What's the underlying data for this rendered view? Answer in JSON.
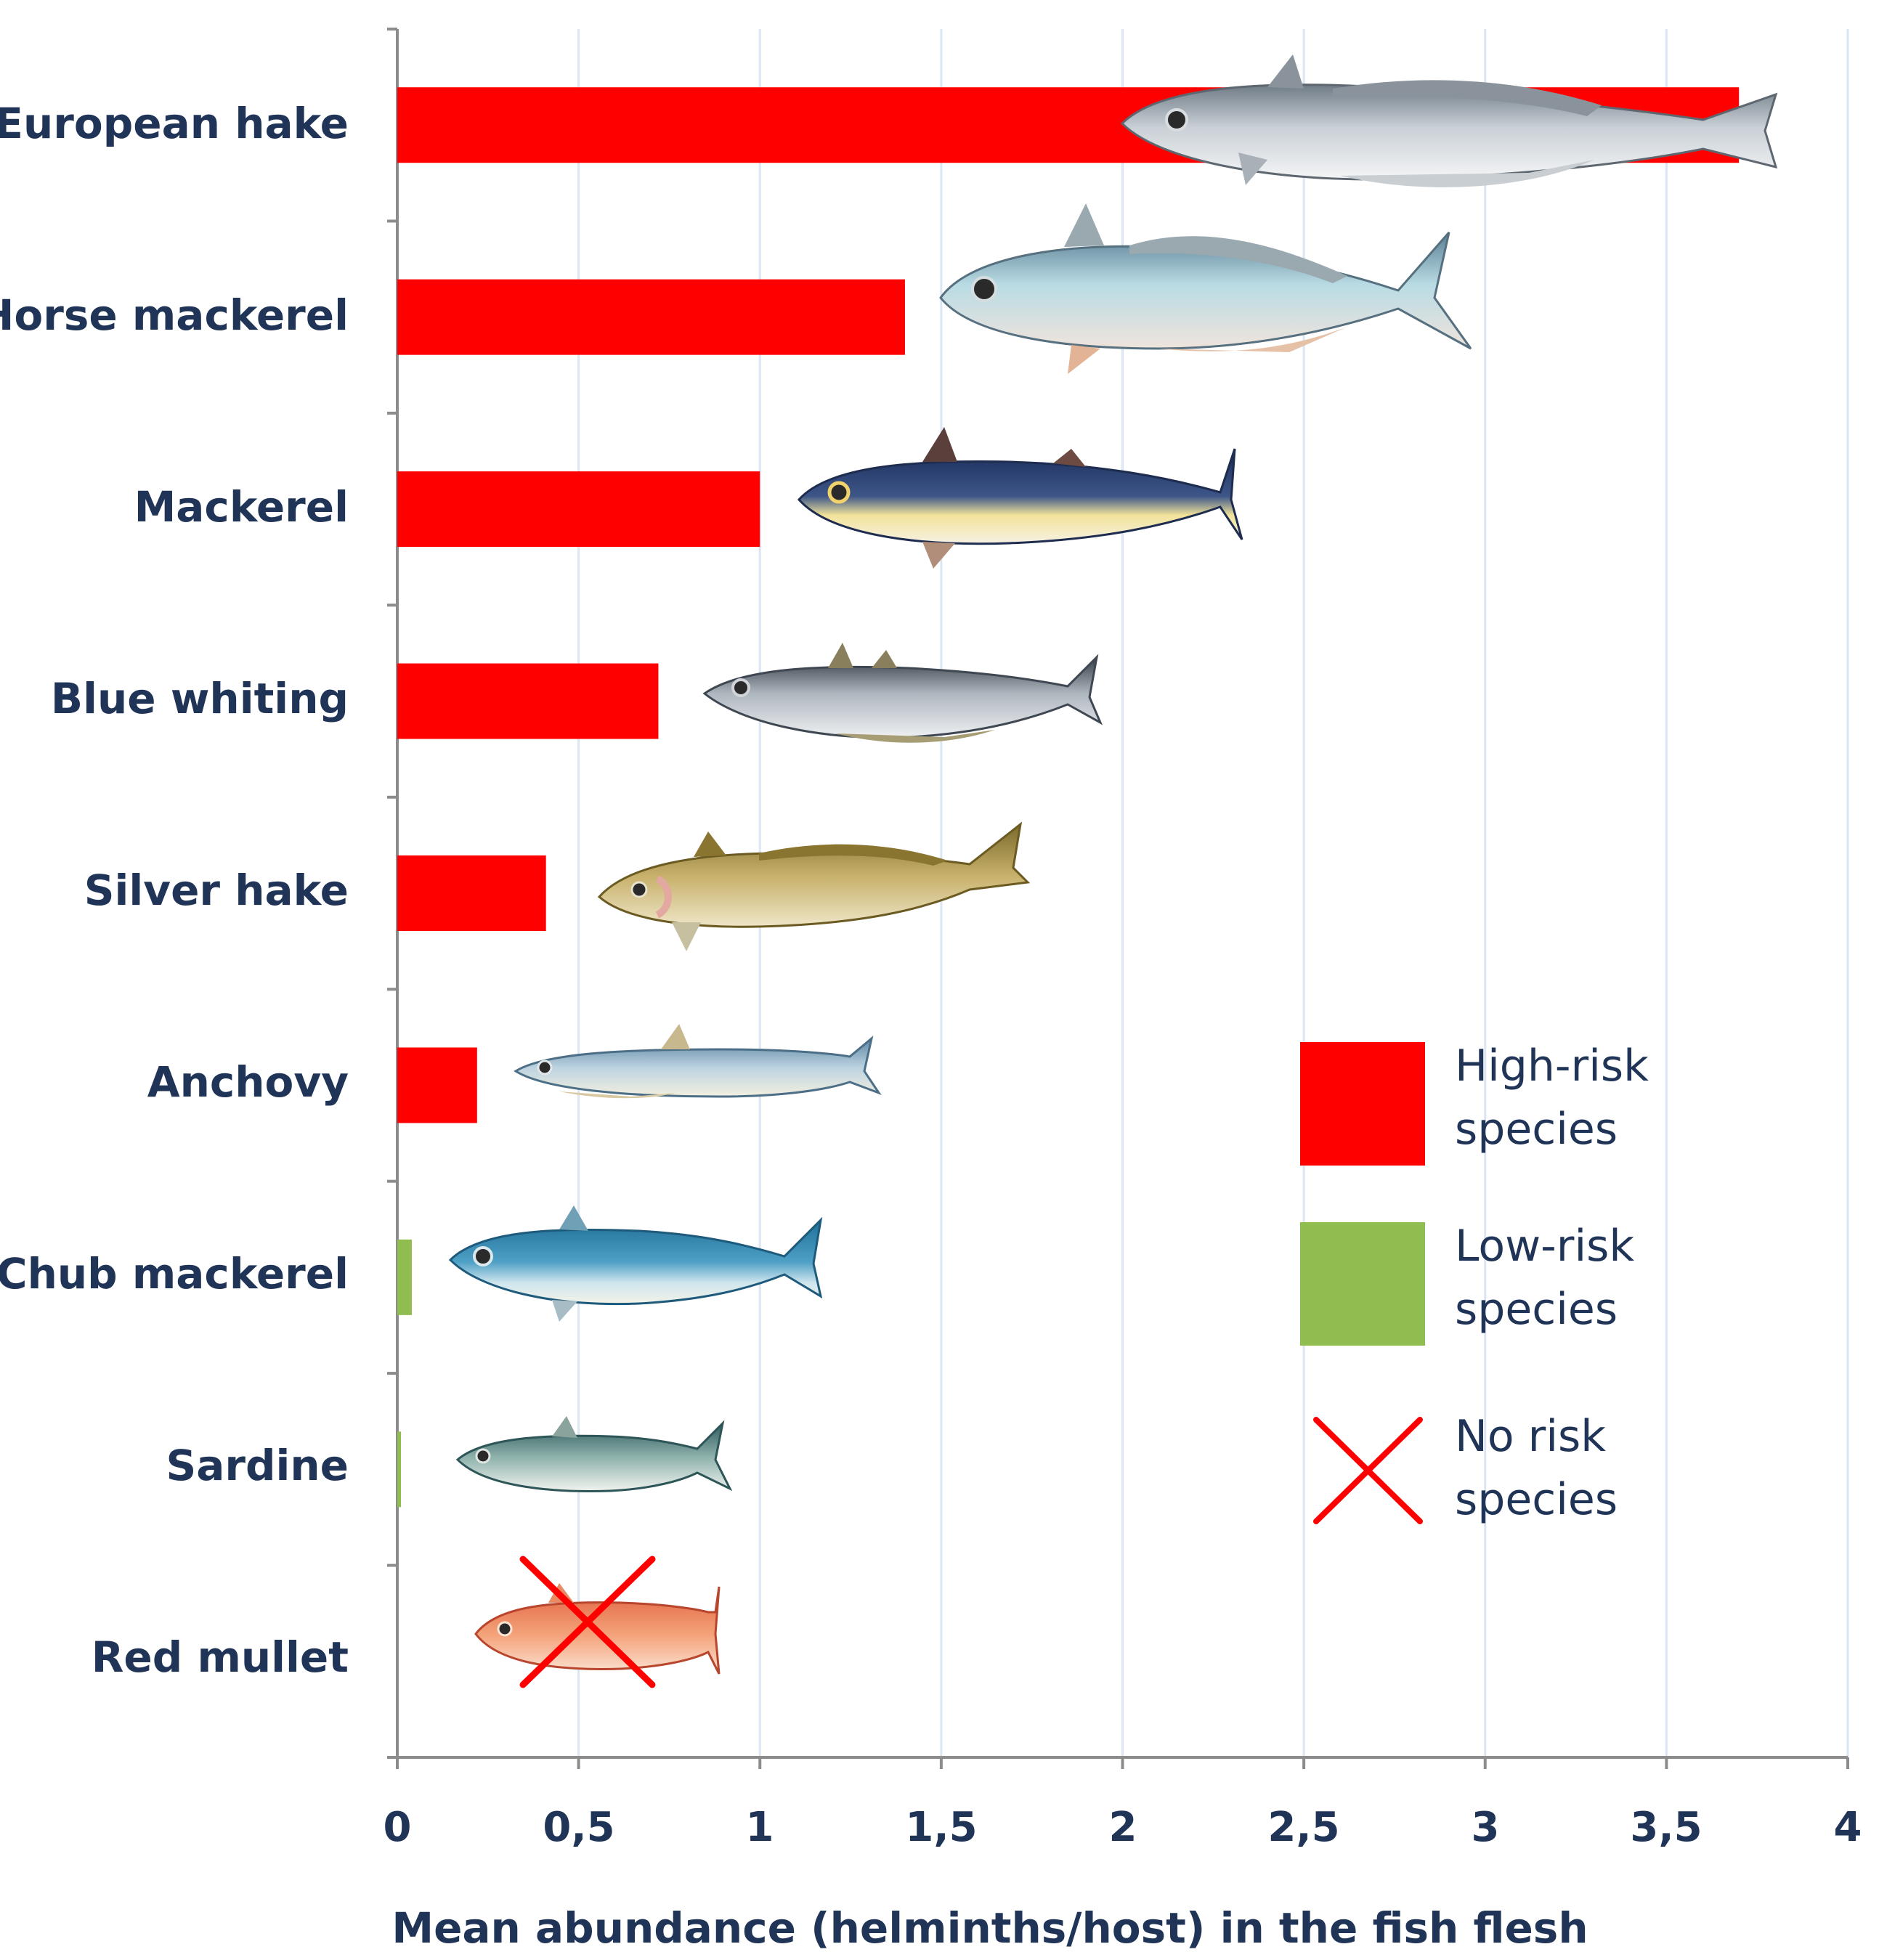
{
  "chart_data": {
    "type": "bar",
    "orientation": "horizontal",
    "categories": [
      "European hake",
      "Horse mackerel",
      "Mackerel",
      "Blue whiting",
      "Silver hake",
      "Anchovy",
      "Chub mackerel",
      "Sardine",
      "Red mullet"
    ],
    "values": [
      3.7,
      1.4,
      1.0,
      0.72,
      0.41,
      0.22,
      0.04,
      0.01,
      0
    ],
    "risk": [
      "high",
      "high",
      "high",
      "high",
      "high",
      "high",
      "low",
      "low",
      "none"
    ],
    "xlabel": "Mean abundance (helminths/host) in the fish flesh",
    "xlim": [
      0,
      4
    ],
    "x_ticks": [
      "0",
      "0,5",
      "1",
      "1,5",
      "2",
      "2,5",
      "3",
      "3,5",
      "4"
    ],
    "grid": "vertical",
    "legend_position": "right",
    "legend": [
      {
        "key": "high",
        "line1": "High-risk",
        "line2": "species",
        "color": "#ff0000",
        "marker": "square"
      },
      {
        "key": "low",
        "line1": "Low-risk",
        "line2": "species",
        "color": "#8fbd4f",
        "marker": "square"
      },
      {
        "key": "none",
        "line1": "No risk",
        "line2": "species",
        "color": "#ff0000",
        "marker": "cross"
      }
    ],
    "colors": {
      "high": "#ff0000",
      "low": "#8fbd4f",
      "axis": "#8c8c8c",
      "grid": "#dbe6f4",
      "text": "#1f3457"
    },
    "fish_icons": [
      "european-hake-icon",
      "horse-mackerel-icon",
      "mackerel-icon",
      "blue-whiting-icon",
      "silver-hake-icon",
      "anchovy-icon",
      "chub-mackerel-icon",
      "sardine-icon",
      "red-mullet-icon"
    ]
  }
}
